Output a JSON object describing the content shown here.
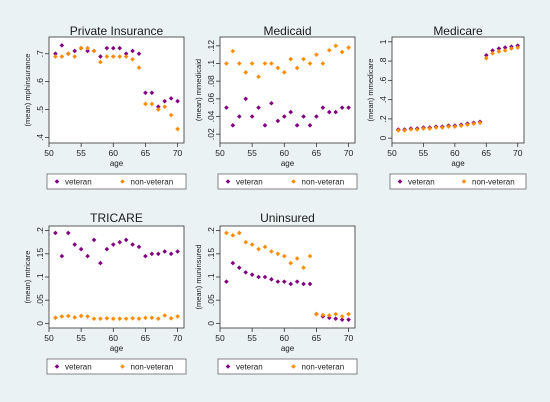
{
  "colors": {
    "veteran": "#800080",
    "non_veteran": "#ff8c00",
    "background": "#eaf2f3",
    "plot_bg": "#ffffff"
  },
  "legend_labels": {
    "veteran": "veteran",
    "non_veteran": "non-veteran"
  },
  "chart_data": [
    {
      "type": "scatter",
      "title": "Private Insurance",
      "xlabel": "age",
      "ylabel": "(mean) mphinsurance",
      "xlim": [
        50,
        71
      ],
      "ylim": [
        0.38,
        0.76
      ],
      "xticks": [
        50,
        55,
        60,
        65,
        70
      ],
      "xticklabels": [
        "50",
        "55",
        "60",
        "65",
        "70"
      ],
      "yticks": [
        0.4,
        0.5,
        0.6,
        0.7
      ],
      "yticklabels": [
        ".4",
        ".5",
        ".6",
        ".7"
      ],
      "legend_position": "bottom",
      "series": [
        {
          "name": "veteran",
          "x": [
            51,
            52,
            53,
            54,
            55,
            56,
            57,
            58,
            59,
            60,
            61,
            62,
            63,
            64,
            65,
            66,
            67,
            68,
            69,
            70
          ],
          "y": [
            0.7,
            0.73,
            0.7,
            0.71,
            0.72,
            0.71,
            0.71,
            0.69,
            0.72,
            0.72,
            0.72,
            0.7,
            0.71,
            0.7,
            0.56,
            0.56,
            0.51,
            0.53,
            0.54,
            0.53
          ]
        },
        {
          "name": "non-veteran",
          "x": [
            51,
            52,
            53,
            54,
            55,
            56,
            57,
            58,
            59,
            60,
            61,
            62,
            63,
            64,
            65,
            66,
            67,
            68,
            69,
            70
          ],
          "y": [
            0.69,
            0.69,
            0.7,
            0.69,
            0.72,
            0.72,
            0.71,
            0.67,
            0.69,
            0.69,
            0.69,
            0.69,
            0.68,
            0.65,
            0.52,
            0.52,
            0.5,
            0.51,
            0.48,
            0.43
          ]
        }
      ]
    },
    {
      "type": "scatter",
      "title": "Medicaid",
      "xlabel": "age",
      "ylabel": "(mean) mmedicaid",
      "xlim": [
        50,
        71
      ],
      "ylim": [
        0.01,
        0.13
      ],
      "xticks": [
        50,
        55,
        60,
        65,
        70
      ],
      "xticklabels": [
        "50",
        "55",
        "60",
        "65",
        "70"
      ],
      "yticks": [
        0.02,
        0.04,
        0.06,
        0.08,
        0.1,
        0.12
      ],
      "yticklabels": [
        ".02",
        ".04",
        ".06",
        ".08",
        ".1",
        ".12"
      ],
      "legend_position": "bottom",
      "series": [
        {
          "name": "veteran",
          "x": [
            51,
            52,
            53,
            54,
            55,
            56,
            57,
            58,
            59,
            60,
            61,
            62,
            63,
            64,
            65,
            66,
            67,
            68,
            69,
            70
          ],
          "y": [
            0.05,
            0.03,
            0.04,
            0.06,
            0.04,
            0.05,
            0.03,
            0.055,
            0.035,
            0.04,
            0.045,
            0.03,
            0.04,
            0.03,
            0.04,
            0.05,
            0.045,
            0.045,
            0.05,
            0.05
          ]
        },
        {
          "name": "non-veteran",
          "x": [
            51,
            52,
            53,
            54,
            55,
            56,
            57,
            58,
            59,
            60,
            61,
            62,
            63,
            64,
            65,
            66,
            67,
            68,
            69,
            70
          ],
          "y": [
            0.1,
            0.114,
            0.1,
            0.09,
            0.1,
            0.085,
            0.1,
            0.1,
            0.095,
            0.09,
            0.105,
            0.095,
            0.105,
            0.1,
            0.11,
            0.1,
            0.115,
            0.12,
            0.113,
            0.118
          ]
        }
      ]
    },
    {
      "type": "scatter",
      "title": "Medicare",
      "xlabel": "age",
      "ylabel": "(mean) mmedicare",
      "xlim": [
        50,
        71
      ],
      "ylim": [
        -0.05,
        1.05
      ],
      "xticks": [
        50,
        55,
        60,
        65,
        70
      ],
      "xticklabels": [
        "50",
        "55",
        "60",
        "65",
        "70"
      ],
      "yticks": [
        0,
        0.2,
        0.4,
        0.6,
        0.8,
        1
      ],
      "yticklabels": [
        "0",
        ".2",
        ".4",
        ".6",
        ".8",
        "1"
      ],
      "legend_position": "bottom",
      "series": [
        {
          "name": "veteran",
          "x": [
            51,
            52,
            53,
            54,
            55,
            56,
            57,
            58,
            59,
            60,
            61,
            62,
            63,
            64,
            65,
            66,
            67,
            68,
            69,
            70
          ],
          "y": [
            0.09,
            0.09,
            0.1,
            0.1,
            0.11,
            0.11,
            0.12,
            0.12,
            0.13,
            0.13,
            0.14,
            0.15,
            0.16,
            0.17,
            0.86,
            0.91,
            0.93,
            0.94,
            0.95,
            0.96
          ]
        },
        {
          "name": "non-veteran",
          "x": [
            51,
            52,
            53,
            54,
            55,
            56,
            57,
            58,
            59,
            60,
            61,
            62,
            63,
            64,
            65,
            66,
            67,
            68,
            69,
            70
          ],
          "y": [
            0.08,
            0.08,
            0.09,
            0.09,
            0.1,
            0.1,
            0.11,
            0.11,
            0.12,
            0.12,
            0.13,
            0.14,
            0.15,
            0.16,
            0.83,
            0.88,
            0.9,
            0.91,
            0.93,
            0.94
          ]
        }
      ]
    },
    {
      "type": "scatter",
      "title": "TRICARE",
      "xlabel": "age",
      "ylabel": "(mean) mtricare",
      "xlim": [
        50,
        71
      ],
      "ylim": [
        -0.01,
        0.21
      ],
      "xticks": [
        50,
        55,
        60,
        65,
        70
      ],
      "xticklabels": [
        "50",
        "55",
        "60",
        "65",
        "70"
      ],
      "yticks": [
        0,
        0.05,
        0.1,
        0.15,
        0.2
      ],
      "yticklabels": [
        "0",
        ".05",
        ".1",
        ".15",
        ".2"
      ],
      "legend_position": "bottom",
      "series": [
        {
          "name": "veteran",
          "x": [
            51,
            52,
            53,
            54,
            55,
            56,
            57,
            58,
            59,
            60,
            61,
            62,
            63,
            64,
            65,
            66,
            67,
            68,
            69,
            70
          ],
          "y": [
            0.195,
            0.145,
            0.195,
            0.17,
            0.16,
            0.145,
            0.18,
            0.13,
            0.16,
            0.17,
            0.175,
            0.18,
            0.17,
            0.165,
            0.145,
            0.15,
            0.15,
            0.155,
            0.15,
            0.155
          ]
        },
        {
          "name": "non-veteran",
          "x": [
            51,
            52,
            53,
            54,
            55,
            56,
            57,
            58,
            59,
            60,
            61,
            62,
            63,
            64,
            65,
            66,
            67,
            68,
            69,
            70
          ],
          "y": [
            0.012,
            0.015,
            0.016,
            0.013,
            0.016,
            0.015,
            0.01,
            0.01,
            0.011,
            0.01,
            0.01,
            0.01,
            0.011,
            0.01,
            0.012,
            0.012,
            0.01,
            0.017,
            0.011,
            0.015
          ]
        }
      ]
    },
    {
      "type": "scatter",
      "title": "Uninsured",
      "xlabel": "age",
      "ylabel": "(mean) muninsured",
      "xlim": [
        50,
        71
      ],
      "ylim": [
        -0.01,
        0.21
      ],
      "xticks": [
        50,
        55,
        60,
        65,
        70
      ],
      "xticklabels": [
        "50",
        "55",
        "60",
        "65",
        "70"
      ],
      "yticks": [
        0,
        0.05,
        0.1,
        0.15,
        0.2
      ],
      "yticklabels": [
        "0",
        ".05",
        ".1",
        ".15",
        ".2"
      ],
      "legend_position": "bottom",
      "series": [
        {
          "name": "veteran",
          "x": [
            51,
            52,
            53,
            54,
            55,
            56,
            57,
            58,
            59,
            60,
            61,
            62,
            63,
            64,
            65,
            66,
            67,
            68,
            69,
            70
          ],
          "y": [
            0.09,
            0.13,
            0.12,
            0.11,
            0.105,
            0.1,
            0.1,
            0.095,
            0.09,
            0.09,
            0.085,
            0.09,
            0.085,
            0.085,
            0.02,
            0.015,
            0.012,
            0.01,
            0.008,
            0.008
          ]
        },
        {
          "name": "non-veteran",
          "x": [
            51,
            52,
            53,
            54,
            55,
            56,
            57,
            58,
            59,
            60,
            61,
            62,
            63,
            64,
            65,
            66,
            67,
            68,
            69,
            70
          ],
          "y": [
            0.195,
            0.19,
            0.195,
            0.175,
            0.17,
            0.16,
            0.165,
            0.155,
            0.15,
            0.145,
            0.13,
            0.14,
            0.12,
            0.145,
            0.02,
            0.018,
            0.017,
            0.02,
            0.015,
            0.02
          ]
        }
      ]
    }
  ]
}
